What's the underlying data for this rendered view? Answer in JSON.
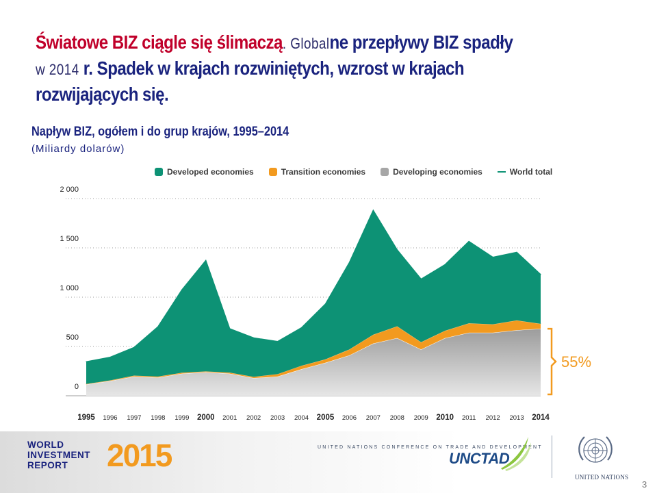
{
  "slide": {
    "title_part1": "Światowe BIZ ciągle się ślimaczą",
    "title_part2": ". Global",
    "title_part3": "ne przepływy BIZ spadły",
    "title_part4": "w 2014",
    "title_part5": " r. Spadek w krajach rozwiniętych, wzrost w krajach",
    "title_part6": "rozwijających się.",
    "subtitle": "Napływ BIZ, ogółem i do grup krajów, 1995–2014",
    "unit": "(Miliardy dolarów)",
    "page_number": "3"
  },
  "footer": {
    "wir_line1": "WORLD",
    "wir_line2": "INVESTMENT",
    "wir_line3": "REPORT",
    "wir_year": "2015",
    "conference": "UNITED NATIONS CONFERENCE ON TRADE AND DEVELOPMENT",
    "unctad": "UNCTAD",
    "un_label": "UNITED NATIONS"
  },
  "chart_data": {
    "type": "area",
    "stacked": true,
    "title": "Napływ BIZ, ogółem i do grup krajów, 1995–2014",
    "ylabel": "(Miliardy dolarów)",
    "xlabel": "",
    "ylim": [
      0,
      2000
    ],
    "yticks": [
      0,
      500,
      1000,
      1500,
      2000
    ],
    "ytick_labels": [
      "0",
      "500",
      "1 000",
      "1 500",
      "2 000"
    ],
    "grid": true,
    "legend_position": "top",
    "x": [
      "1995",
      "1996",
      "1997",
      "1998",
      "1999",
      "2000",
      "2001",
      "2002",
      "2003",
      "2004",
      "2005",
      "2006",
      "2007",
      "2008",
      "2009",
      "2010",
      "2011",
      "2012",
      "2013",
      "2014"
    ],
    "bold_x": [
      "1995",
      "2000",
      "2005",
      "2010",
      "2014"
    ],
    "series": [
      {
        "name": "Developing economies",
        "color": "#a6a6a6",
        "values": [
          115,
          150,
          195,
          185,
          225,
          240,
          225,
          180,
          195,
          270,
          335,
          410,
          530,
          585,
          470,
          585,
          640,
          640,
          665,
          680
        ]
      },
      {
        "name": "Transition economies",
        "color": "#f29a1f",
        "values": [
          5,
          6,
          10,
          10,
          9,
          7,
          10,
          12,
          25,
          35,
          35,
          60,
          90,
          120,
          73,
          75,
          95,
          85,
          100,
          50
        ]
      },
      {
        "name": "Developed economies",
        "color": "#0d9275",
        "values": [
          225,
          235,
          285,
          505,
          840,
          1125,
          445,
          395,
          330,
          385,
          560,
          880,
          1260,
          775,
          640,
          670,
          830,
          680,
          690,
          500
        ]
      }
    ],
    "total_series": {
      "name": "World total",
      "color": "#0d9275"
    },
    "annotation": {
      "text": "55%",
      "color": "#f29a1f",
      "brackets_series": "Developing economies",
      "year": "2014"
    }
  }
}
